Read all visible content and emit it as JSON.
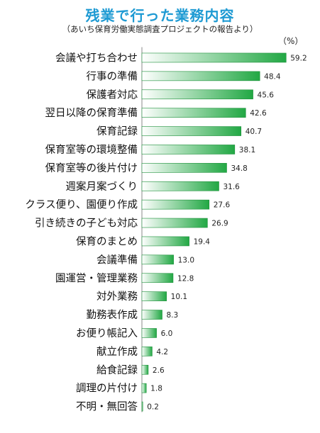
{
  "title": "残業で行った業務内容",
  "subtitle": "（あいち保育労働実態調査プロジェクトの報告より）",
  "unit": "（%）",
  "chart_data": {
    "type": "bar",
    "orientation": "horizontal",
    "title": "残業で行った業務内容",
    "subtitle": "（あいち保育労働実態調査プロジェクトの報告より）",
    "unit": "（%）",
    "categories": [
      "会議や打ち合わせ",
      "行事の準備",
      "保護者対応",
      "翌日以降の保育準備",
      "保育記録",
      "保育室等の環境整備",
      "保育室等の後片付け",
      "週案月案づくり",
      "クラス便り、園便り作成",
      "引き続きの子ども対応",
      "保育のまとめ",
      "会議準備",
      "園運営・管理業務",
      "対外業務",
      "勤務表作成",
      "お便り帳記入",
      "献立作成",
      "給食記録",
      "調理の片付け",
      "不明・無回答"
    ],
    "values": [
      59.2,
      48.4,
      45.6,
      42.6,
      40.7,
      38.1,
      34.8,
      31.6,
      27.6,
      26.9,
      19.4,
      13.0,
      12.8,
      10.1,
      8.3,
      6.0,
      4.2,
      2.6,
      1.8,
      0.2
    ],
    "value_labels": [
      "59.2",
      "48.4",
      "45.6",
      "42.6",
      "40.7",
      "38.1",
      "34.8",
      "31.6",
      "27.6",
      "26.9",
      "19.4",
      "13.0",
      "12.8",
      "10.1",
      "8.3",
      "6.0",
      "4.2",
      "2.6",
      "1.8",
      "0.2"
    ],
    "xlim": [
      0,
      60
    ],
    "grid": false,
    "bar_color_start": "#ffffff",
    "bar_color_end": "#22a844",
    "bar_border": "#1d8f3a",
    "title_color": "#1e9ad3"
  }
}
